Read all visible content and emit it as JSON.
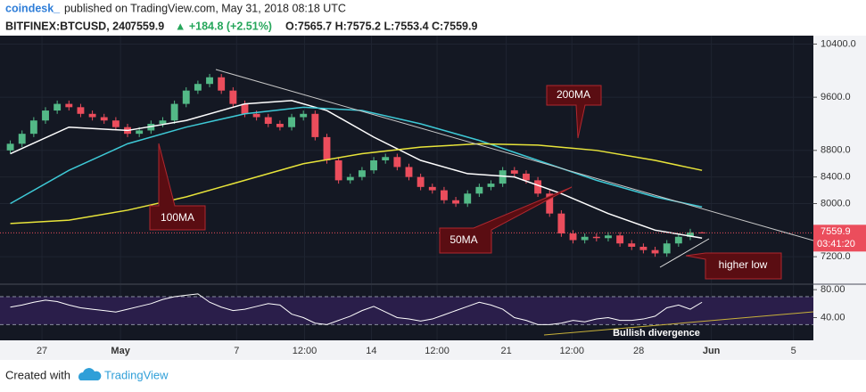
{
  "header": {
    "publisher": "coindesk_",
    "published": "published on TradingView.com, May 31, 2018 08:18 UTC",
    "symbol": "BITFINEX:BTCUSD, 240",
    "last": "7559.9",
    "change": "▲ +184.8 (+2.51%)",
    "ohlc": "O:7565.7 H:7575.2 L:7553.4 C:7559.9"
  },
  "footer": {
    "created": "Created with",
    "brand": "TradingView"
  },
  "chart_data": [
    {
      "type": "candlestick",
      "up_color": "#53b987",
      "down_color": "#eb4d5c",
      "xlim": [
        -0.5,
        68.5
      ],
      "ylim": [
        6800,
        10500
      ],
      "xticks": [
        {
          "value": 2.7,
          "label": "27"
        },
        {
          "value": 9.4,
          "label": "May"
        },
        {
          "value": 19.3,
          "label": "7"
        },
        {
          "value": 25.1,
          "label": "12:00"
        },
        {
          "value": 30.8,
          "label": "14"
        },
        {
          "value": 36.4,
          "label": "12:00"
        },
        {
          "value": 42.3,
          "label": "21"
        },
        {
          "value": 47.9,
          "label": "12:00"
        },
        {
          "value": 53.6,
          "label": "28"
        },
        {
          "value": 59.8,
          "label": "Jun"
        },
        {
          "value": 66.8,
          "label": "5"
        }
      ],
      "yticks": [
        {
          "value": 10400,
          "label": "10400.0"
        },
        {
          "value": 9600,
          "label": "9600.0"
        },
        {
          "value": 8800,
          "label": "8800.0"
        },
        {
          "value": 8400,
          "label": "8400.0"
        },
        {
          "value": 8000,
          "label": "8000.0"
        },
        {
          "value": 7200,
          "label": "7200.0"
        }
      ],
      "grid": true,
      "open": [
        8800,
        8900,
        9050,
        9250,
        9400,
        9500,
        9450,
        9350,
        9300,
        9250,
        9150,
        9050,
        9100,
        9200,
        9250,
        9500,
        9700,
        9800,
        9900,
        9700,
        9500,
        9350,
        9300,
        9200,
        9150,
        9300,
        9350,
        9000,
        8650,
        8350,
        8400,
        8500,
        8650,
        8700,
        8550,
        8400,
        8250,
        8200,
        8050,
        8000,
        8150,
        8250,
        8300,
        8500,
        8450,
        8350,
        8150,
        7850,
        7550,
        7450,
        7500,
        7480,
        7520,
        7400,
        7350,
        7300,
        7250,
        7400,
        7500,
        7565.7
      ],
      "high": [
        8950,
        9100,
        9300,
        9450,
        9550,
        9550,
        9500,
        9400,
        9350,
        9300,
        9200,
        9150,
        9250,
        9300,
        9550,
        9750,
        9850,
        9950,
        9950,
        9750,
        9550,
        9400,
        9350,
        9250,
        9350,
        9400,
        9400,
        9050,
        8700,
        8450,
        8550,
        8700,
        8750,
        8750,
        8600,
        8450,
        8300,
        8250,
        8100,
        8200,
        8300,
        8350,
        8550,
        8550,
        8500,
        8400,
        8200,
        7900,
        7600,
        7550,
        7550,
        7570,
        7570,
        7450,
        7400,
        7350,
        7450,
        7550,
        7620,
        7575.2
      ],
      "low": [
        8750,
        8850,
        9000,
        9200,
        9350,
        9400,
        9300,
        9250,
        9200,
        9100,
        9000,
        9000,
        9050,
        9150,
        9200,
        9450,
        9650,
        9750,
        9650,
        9450,
        9300,
        9250,
        9150,
        9100,
        9100,
        9250,
        8950,
        8600,
        8300,
        8300,
        8350,
        8450,
        8600,
        8500,
        8350,
        8200,
        8150,
        8000,
        7950,
        7950,
        8100,
        8200,
        8250,
        8400,
        8300,
        8100,
        7800,
        7500,
        7400,
        7400,
        7430,
        7430,
        7350,
        7300,
        7250,
        7200,
        7200,
        7350,
        7450,
        7553.4
      ],
      "close": [
        8900,
        9050,
        9250,
        9400,
        9500,
        9450,
        9350,
        9300,
        9250,
        9150,
        9050,
        9100,
        9200,
        9250,
        9500,
        9700,
        9800,
        9900,
        9700,
        9500,
        9350,
        9300,
        9200,
        9150,
        9300,
        9350,
        9000,
        8650,
        8350,
        8400,
        8500,
        8650,
        8700,
        8550,
        8400,
        8250,
        8200,
        8050,
        8000,
        8150,
        8250,
        8300,
        8500,
        8450,
        8350,
        8150,
        7850,
        7550,
        7450,
        7500,
        7480,
        7520,
        7400,
        7350,
        7300,
        7250,
        7400,
        7500,
        7565.7,
        7559.9
      ],
      "countdown": "03:41:20",
      "series": [
        {
          "color": "#ffffff",
          "x": [
            0,
            5,
            10,
            15,
            20,
            24,
            27,
            31,
            35,
            39,
            43,
            47,
            51,
            55,
            59
          ],
          "values": [
            8750,
            9150,
            9100,
            9250,
            9500,
            9550,
            9400,
            9000,
            8650,
            8450,
            8400,
            8150,
            7850,
            7600,
            7480
          ]
        },
        {
          "color": "#3ec9d6",
          "x": [
            0,
            5,
            10,
            15,
            20,
            25,
            30,
            35,
            40,
            45,
            50,
            55,
            59
          ],
          "values": [
            8000,
            8500,
            8900,
            9150,
            9350,
            9450,
            9400,
            9200,
            8950,
            8650,
            8350,
            8100,
            7950
          ]
        },
        {
          "color": "#e8e43a",
          "x": [
            0,
            5,
            10,
            15,
            20,
            25,
            30,
            35,
            40,
            45,
            50,
            55,
            59
          ],
          "values": [
            7700,
            7750,
            7900,
            8100,
            8350,
            8600,
            8750,
            8850,
            8900,
            8880,
            8800,
            8650,
            8500
          ]
        }
      ],
      "annotations": [
        "200MA",
        "100MA",
        "50MA",
        "higher low"
      ]
    },
    {
      "type": "line",
      "color": "#ffffff",
      "ylim": [
        10,
        84
      ],
      "yticks": [
        {
          "value": 80,
          "label": "80.00"
        },
        {
          "value": 40,
          "label": "40.00"
        }
      ],
      "bands": [
        70,
        30
      ],
      "values": [
        55,
        58,
        62,
        65,
        63,
        58,
        54,
        52,
        50,
        48,
        52,
        56,
        60,
        66,
        70,
        72,
        74,
        62,
        55,
        50,
        52,
        56,
        60,
        58,
        45,
        40,
        32,
        30,
        36,
        42,
        50,
        56,
        48,
        40,
        38,
        35,
        38,
        44,
        50,
        56,
        62,
        58,
        52,
        40,
        36,
        30,
        30,
        32,
        36,
        34,
        38,
        40,
        36,
        36,
        38,
        42,
        54,
        58,
        52,
        62
      ],
      "annotation": "Bullish divergence"
    }
  ]
}
